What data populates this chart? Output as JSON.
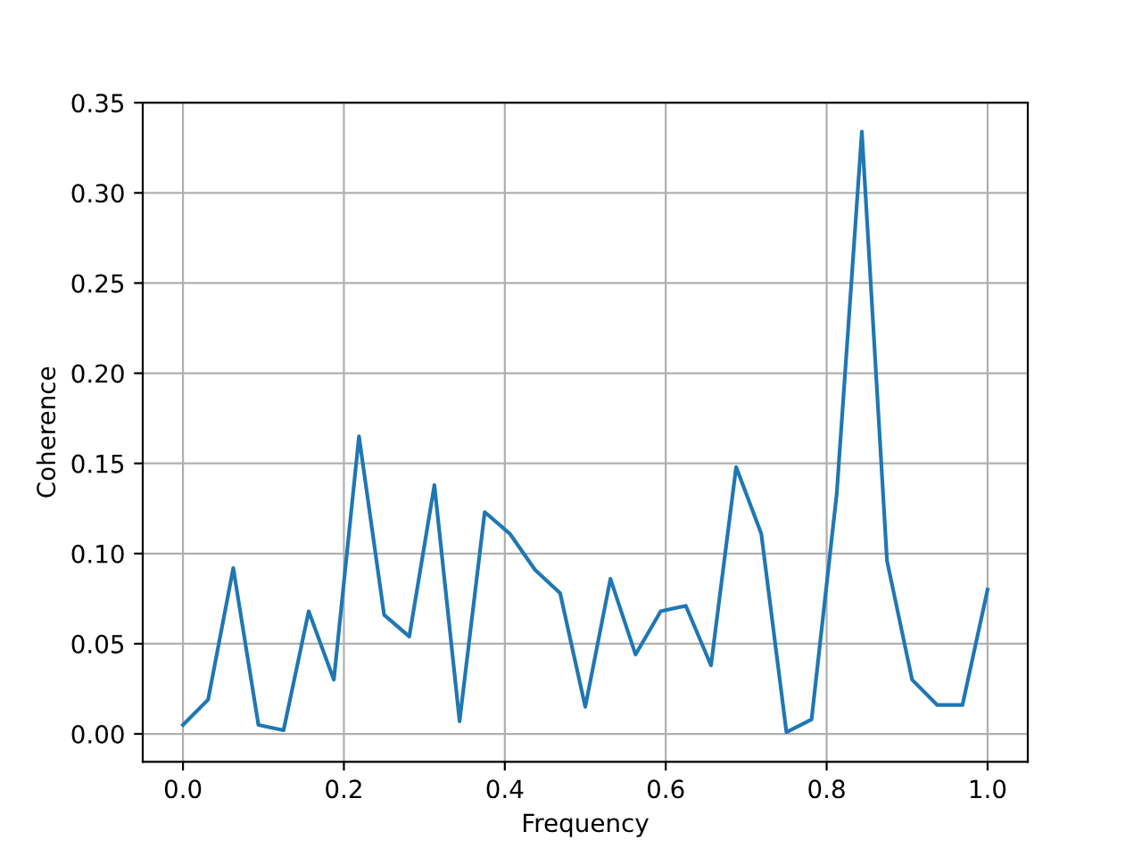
{
  "chart_data": {
    "type": "line",
    "xlabel": "Frequency",
    "ylabel": "Coherence",
    "x": [
      0,
      0.03125,
      0.0625,
      0.09375,
      0.125,
      0.15625,
      0.1875,
      0.21875,
      0.25,
      0.28125,
      0.3125,
      0.34375,
      0.375,
      0.40625,
      0.4375,
      0.46875,
      0.5,
      0.53125,
      0.5625,
      0.59375,
      0.625,
      0.65625,
      0.6875,
      0.71875,
      0.75,
      0.78125,
      0.8125,
      0.84375,
      0.875,
      0.90625,
      0.9375,
      0.96875,
      1.0
    ],
    "series": [
      {
        "color": "#1f77b4",
        "values": [
          0.005,
          0.019,
          0.092,
          0.005,
          0.002,
          0.068,
          0.03,
          0.165,
          0.066,
          0.054,
          0.138,
          0.007,
          0.123,
          0.111,
          0.091,
          0.078,
          0.015,
          0.086,
          0.044,
          0.068,
          0.071,
          0.038,
          0.148,
          0.111,
          0.001,
          0.008,
          0.133,
          0.334,
          0.096,
          0.03,
          0.016,
          0.016,
          0.08
        ]
      }
    ],
    "xlim": [
      -0.05,
      1.05
    ],
    "xticks": [
      {
        "value": 0,
        "label": "0.0"
      },
      0.2,
      0.4,
      0.6,
      0.8,
      {
        "value": 1,
        "label": "1.0"
      }
    ],
    "ylim": [
      -0.0155,
      0.35
    ],
    "yticks": [
      {
        "value": 0,
        "label": "0.00"
      },
      0.05,
      {
        "value": 0.1,
        "label": "0.10"
      },
      0.15,
      {
        "value": 0.2,
        "label": "0.20"
      },
      0.25,
      {
        "value": 0.3,
        "label": "0.30"
      },
      0.35
    ],
    "grid": true,
    "marker": "none",
    "line_style": "solid"
  }
}
